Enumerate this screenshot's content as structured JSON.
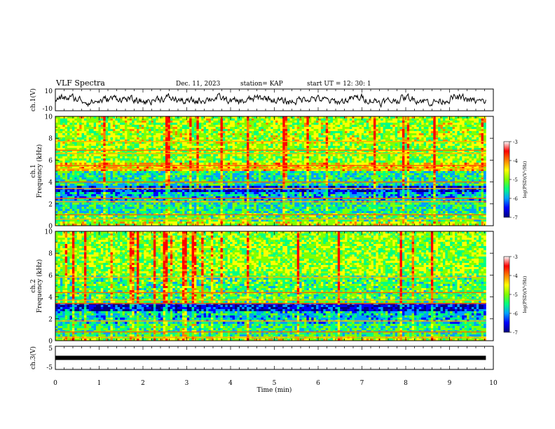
{
  "header": {
    "title": "VLF Spectra",
    "date": "Dec. 11, 2023",
    "station": "station= KAP",
    "start": "start  UT  =   12: 30: 1"
  },
  "panels": {
    "ch1_waveform": {
      "ylabel": "ch.1(V)",
      "ticks": [
        "10",
        "-10"
      ]
    },
    "ch1_spectrogram": {
      "ylabel_top": "ch.1",
      "ylabel": "Frequency  (kHz)"
    },
    "ch2_spectrogram": {
      "ylabel_top": "ch.2",
      "ylabel": "Frequency  (kHz)"
    },
    "ch3_waveform": {
      "ylabel": "ch.3(V)",
      "ticks": [
        "5",
        "-5"
      ]
    }
  },
  "colorbar": {
    "label": "log(PSD)(V²/Hz)",
    "ticks": [
      "-3",
      "-4",
      "-5",
      "-6",
      "-7"
    ],
    "colors": [
      "#000080",
      "#0000ff",
      "#00a0ff",
      "#00ff80",
      "#80ff00",
      "#ffff00",
      "#ff8000",
      "#ff0000",
      "#ffffff"
    ]
  },
  "xaxis": {
    "label": "Time  (min)",
    "ticks": [
      "0",
      "1",
      "2",
      "3",
      "4",
      "5",
      "6",
      "7",
      "8",
      "9",
      "10"
    ]
  },
  "chart_data": {
    "type": "heatmap",
    "x": {
      "label": "Time  (min)",
      "range": [
        0,
        10
      ],
      "data_end": 9.83
    },
    "spectrograms": [
      {
        "name": "ch.1",
        "ylabel": "Frequency  (kHz)",
        "yrange": [
          0,
          10
        ],
        "yticks": [
          0,
          2,
          4,
          6,
          8,
          10
        ],
        "colorbar_range": [
          -7,
          -3
        ],
        "bands": [
          {
            "f_range": [
              0,
              0.4
            ],
            "level": -4.5
          },
          {
            "f_range": [
              0.4,
              1.2
            ],
            "level": -5.0
          },
          {
            "f_range": [
              1.2,
              2.2
            ],
            "level": -5.3
          },
          {
            "f_range": [
              2.2,
              3.0
            ],
            "level": -5.6
          },
          {
            "f_range": [
              3.0,
              3.7
            ],
            "level": -6.2
          },
          {
            "f_range": [
              3.7,
              5.0
            ],
            "level": -5.3
          },
          {
            "f_range": [
              5.0,
              5.8
            ],
            "level": -4.1
          },
          {
            "f_range": [
              5.8,
              7.5
            ],
            "level": -4.7
          },
          {
            "f_range": [
              7.5,
              10.0
            ],
            "level": -4.6
          }
        ],
        "lines_khz": [
          0.6,
          1.0,
          2.2,
          2.5,
          3.4,
          4.0,
          5.2,
          5.5,
          6.6,
          6.9,
          7.7
        ]
      },
      {
        "name": "ch.2",
        "ylabel": "Frequency  (kHz)",
        "yrange": [
          0,
          10
        ],
        "yticks": [
          0,
          2,
          4,
          6,
          8,
          10
        ],
        "colorbar_range": [
          -7,
          -3
        ],
        "bands": [
          {
            "f_range": [
              0,
              0.4
            ],
            "level": -4.5
          },
          {
            "f_range": [
              0.4,
              1.6
            ],
            "level": -5.2
          },
          {
            "f_range": [
              1.6,
              2.6
            ],
            "level": -5.5
          },
          {
            "f_range": [
              2.6,
              3.5
            ],
            "level": -6.4
          },
          {
            "f_range": [
              3.5,
              6.0
            ],
            "level": -5.0
          },
          {
            "f_range": [
              6.0,
              10.0
            ],
            "level": -4.7
          }
        ],
        "lines_khz": [
          0.3,
          0.8,
          1.8,
          3.4,
          3.7,
          4.4,
          5.8
        ]
      }
    ],
    "waveforms": [
      {
        "name": "ch.1(V)",
        "yrange": [
          -10,
          10
        ],
        "yticks": [
          -10,
          10
        ],
        "mean": 0,
        "amplitude": 4
      },
      {
        "name": "ch.3(V)",
        "yrange": [
          -5,
          5
        ],
        "yticks": [
          -5,
          5
        ],
        "mean": 0,
        "amplitude": 0.15
      }
    ]
  }
}
